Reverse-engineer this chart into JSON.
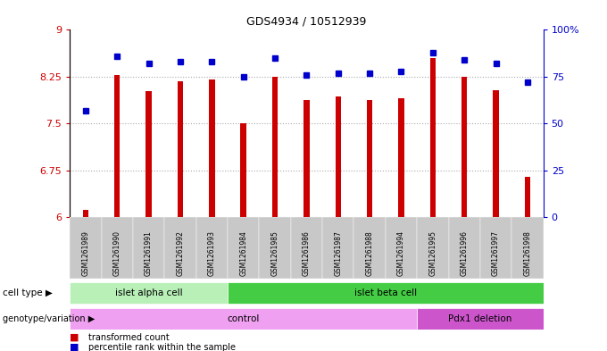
{
  "title": "GDS4934 / 10512939",
  "samples": [
    "GSM1261989",
    "GSM1261990",
    "GSM1261991",
    "GSM1261992",
    "GSM1261993",
    "GSM1261984",
    "GSM1261985",
    "GSM1261986",
    "GSM1261987",
    "GSM1261988",
    "GSM1261994",
    "GSM1261995",
    "GSM1261996",
    "GSM1261997",
    "GSM1261998"
  ],
  "red_values": [
    6.12,
    8.28,
    8.02,
    8.18,
    8.2,
    7.5,
    8.25,
    7.88,
    7.93,
    7.88,
    7.9,
    8.55,
    8.25,
    8.04,
    6.65
  ],
  "blue_values": [
    57,
    86,
    82,
    83,
    83,
    75,
    85,
    76,
    77,
    77,
    78,
    88,
    84,
    82,
    72
  ],
  "ylim_left": [
    6.0,
    9.0
  ],
  "ylim_right": [
    0,
    100
  ],
  "yticks_left": [
    6.0,
    6.75,
    7.5,
    8.25,
    9.0
  ],
  "ytick_labels_left": [
    "6",
    "6.75",
    "7.5",
    "8.25",
    "9"
  ],
  "ytick_labels_right": [
    "0",
    "25",
    "50",
    "75",
    "100%"
  ],
  "yticks_right": [
    0,
    25,
    50,
    75,
    100
  ],
  "bar_color": "#cc0000",
  "dot_color": "#0000cc",
  "left_axis_color": "#cc0000",
  "right_axis_color": "#0000cc",
  "xtick_bg_color": "#c8c8c8",
  "cell_groups": [
    {
      "label": "islet alpha cell",
      "start": 0,
      "end": 4,
      "color": "#b8f0b8"
    },
    {
      "label": "islet beta cell",
      "start": 5,
      "end": 14,
      "color": "#44cc44"
    }
  ],
  "geno_groups": [
    {
      "label": "control",
      "start": 0,
      "end": 10,
      "color": "#f0a0f0"
    },
    {
      "label": "Pdx1 deletion",
      "start": 11,
      "end": 14,
      "color": "#cc55cc"
    }
  ],
  "cell_label": "cell type",
  "geno_label": "genotype/variation",
  "legend_red_text": "transformed count",
  "legend_blue_text": "percentile rank within the sample"
}
